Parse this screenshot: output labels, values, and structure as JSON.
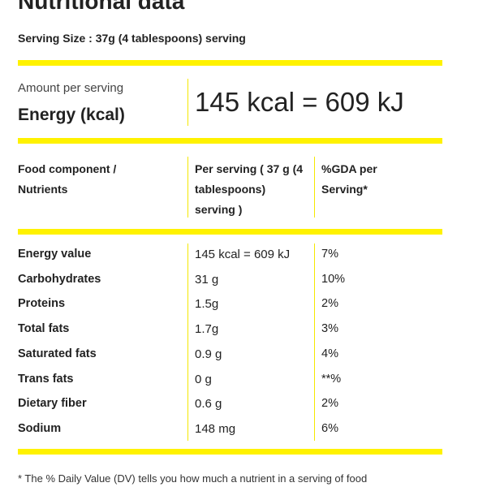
{
  "header": {
    "title": "Nutritional data",
    "serving_size": "Serving Size : 37g (4 tablespoons) serving"
  },
  "energy": {
    "caption": "Amount per serving",
    "label": "Energy (kcal)",
    "value": "145 kcal = 609 kJ"
  },
  "table": {
    "headers": [
      "Food component / Nutrients",
      "Per serving ( 37 g (4 tablespoons) serving )",
      "%GDA per Serving*"
    ],
    "rows": [
      [
        "Energy value",
        "145 kcal = 609 kJ",
        "7%"
      ],
      [
        "Carbohydrates",
        "31 g",
        "10%"
      ],
      [
        "Proteins",
        "1.5g",
        "2%"
      ],
      [
        "Total fats",
        "1.7g",
        "3%"
      ],
      [
        "Saturated fats",
        "0.9 g",
        "4%"
      ],
      [
        "Trans fats",
        "0 g",
        "**%"
      ],
      [
        "Dietary fiber",
        "0.6 g",
        "2%"
      ],
      [
        "Sodium",
        "148 mg",
        "6%"
      ]
    ]
  },
  "footnote": "* The % Daily Value (DV) tells you how much a nutrient in a serving of food"
}
